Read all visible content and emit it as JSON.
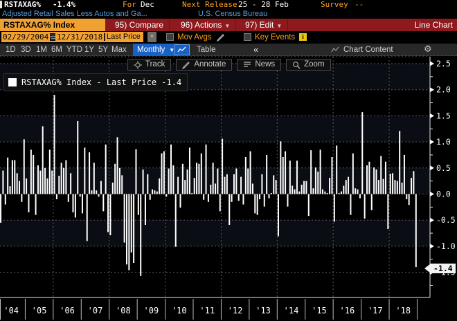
{
  "header": {
    "ticker": "RSTAXAG%",
    "last_change": "-1.4%",
    "for_label": "For",
    "for_value": "Dec",
    "release_label": "Next Release",
    "release_value": "25 - 28 Feb",
    "survey_label": "Survey",
    "survey_value": "--",
    "description": "Adjusted Retail Sales Less Autos and Ga...",
    "source": "U.S. Census Bureau"
  },
  "menubar": {
    "security": "RSTAXAG% Index",
    "items": [
      "95) Compare",
      "96) Actions",
      "97) Edit"
    ],
    "right_label": "Line Chart"
  },
  "controls": {
    "start_date": "02/29/2004",
    "range_dash": "-",
    "end_date": "12/31/2018",
    "field": "Last Price",
    "mov_avgs_label": "Mov Avgs",
    "key_events_label": "Key Events",
    "info_glyph": "i"
  },
  "tabs": {
    "ranges": [
      "1D",
      "3D",
      "1M",
      "6M",
      "YTD",
      "1Y",
      "5Y",
      "Max"
    ],
    "period": "Monthly",
    "table_label": "Table",
    "collapse_glyph": "«",
    "chart_content_label": "Chart Content",
    "gear_glyph": "⚙"
  },
  "chart_toolbar": {
    "track": "Track",
    "annotate": "Annotate",
    "news": "News",
    "zoom": "Zoom"
  },
  "legend": {
    "text": "RSTAXAG% Index - Last Price -1.4"
  },
  "chart_data": {
    "type": "bar",
    "title": "RSTAXAG% Index - Last Price",
    "unit": "percent month-over-month",
    "frequency": "monthly",
    "start": "2004-02",
    "end": "2018-12",
    "ylim": [
      -1.75,
      2.6
    ],
    "y_ticks": [
      2.5,
      2.0,
      1.5,
      1.0,
      0.5,
      0.0,
      -0.5,
      -1.0,
      -1.5
    ],
    "x_labels": [
      "'04",
      "'05",
      "'06",
      "'07",
      "'08",
      "'09",
      "'10",
      "'11",
      "'12",
      "'13",
      "'14",
      "'15",
      "'16",
      "'17",
      "'18"
    ],
    "grid": "dashed",
    "legend_position": "top-left",
    "bar_color": "#ffffff",
    "last_value": -1.4,
    "last_value_label": "-1.4",
    "values": [
      -0.55,
      0.45,
      -0.2,
      0.7,
      0.15,
      0.65,
      0.65,
      0.4,
      0.25,
      -0.15,
      1.05,
      0.3,
      -0.35,
      0.85,
      0.75,
      -0.4,
      0.55,
      0.45,
      1.3,
      0.5,
      0.3,
      0.85,
      0.45,
      1.9,
      -0.1,
      0.35,
      0.6,
      0.5,
      0.65,
      -0.15,
      0.4,
      -0.35,
      -0.45,
      1.4,
      -0.05,
      -0.37,
      0.89,
      -0.9,
      0.8,
      0.07,
      0.6,
      0.07,
      -0.05,
      0.25,
      -0.33,
      0.95,
      -0.73,
      -0.79,
      0.22,
      0.58,
      1.09,
      0.5,
      0.36,
      -0.93,
      -1.35,
      -1.46,
      -1.12,
      -1.32,
      0.86,
      -0.4,
      -1.57,
      0.47,
      -0.59,
      0.38,
      -0.11,
      0.09,
      0.07,
      0.05,
      0.3,
      0.78,
      0.82,
      -0.05,
      0.49,
      0.95,
      0.55,
      -1.01,
      0.33,
      -0.26,
      0.58,
      0.27,
      0.47,
      0.89,
      0.02,
      0.31,
      0.6,
      0.58,
      0.78,
      -0.11,
      0.95,
      -0.15,
      0.18,
      0.6,
      0.2,
      0.49,
      -0.33,
      1.06,
      0.33,
      0.38,
      -0.59,
      -0.15,
      0.38,
      0.49,
      -0.13,
      0.33,
      -0.2,
      0.71,
      0.49,
      0.82,
      0.2,
      -0.37,
      -0.4,
      -0.1,
      0.38,
      -0.24,
      0.75,
      -0.08,
      0.02,
      0.36,
      0.27,
      -0.81,
      1.01,
      0.71,
      0.82,
      -0.24,
      0.64,
      0.16,
      0.09,
      0.64,
      0.05,
      0.18,
      0.25,
      0.25,
      -0.42,
      0.84,
      0.11,
      0.51,
      0.43,
      0.85,
      0.09,
      0.05,
      0.02,
      0.31,
      0.71,
      -0.53,
      0.93,
      0.02,
      0.05,
      0.16,
      0.27,
      0.33,
      -0.4,
      0.78,
      0.11,
      0.09,
      -0.08,
      1.57,
      -0.47,
      0.55,
      0.62,
      -0.31,
      0.51,
      0.47,
      0.27,
      0.73,
      0.29,
      0.62,
      -0.67,
      0.39,
      0.4,
      0.27,
      0.25,
      1.21,
      0.22,
      0.75,
      -0.1,
      -0.21,
      0.31,
      0.44,
      -1.4
    ]
  }
}
